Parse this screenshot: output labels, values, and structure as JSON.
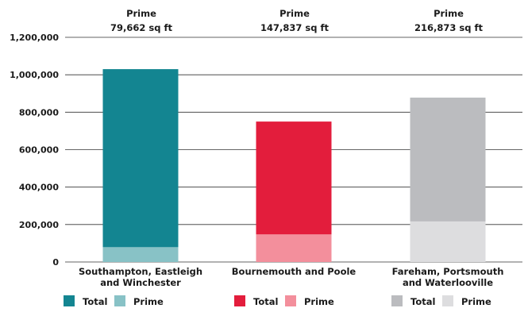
{
  "chart_data": {
    "type": "bar",
    "stacked": true,
    "categories": [
      [
        "Southampton, Eastleigh",
        "and Winchester"
      ],
      [
        "Bournemouth and Poole"
      ],
      [
        "Fareham, Portsmouth",
        "and Waterlooville"
      ]
    ],
    "series": [
      {
        "name": "Total",
        "values": [
          1030000,
          750000,
          878000
        ]
      },
      {
        "name": "Prime",
        "values": [
          79662,
          147837,
          216873
        ]
      }
    ],
    "annotations": [
      {
        "line1": "Prime",
        "line2": "79,662 sq ft"
      },
      {
        "line1": "Prime",
        "line2": "147,837 sq ft"
      },
      {
        "line1": "Prime",
        "line2": "216,873 sq ft"
      }
    ],
    "yticks": [
      "0",
      "200,000",
      "400,000",
      "600,000",
      "800,000",
      "1,000,000",
      "1,200,000"
    ],
    "ylim": [
      0,
      1200000
    ],
    "grid": true,
    "colors": {
      "total": [
        "#138591",
        "#e31d3c",
        "#bbbcbf"
      ],
      "prime": [
        "#88c2c6",
        "#f38f9c",
        "#dddddf"
      ]
    },
    "legend": [
      {
        "total_label": "Total",
        "prime_label": "Prime"
      },
      {
        "total_label": "Total",
        "prime_label": "Prime"
      },
      {
        "total_label": "Total",
        "prime_label": "Prime"
      }
    ]
  }
}
